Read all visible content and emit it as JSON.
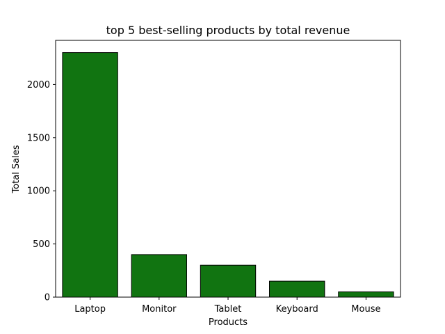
{
  "chart_data": {
    "type": "bar",
    "title": "top 5 best-selling products by total revenue",
    "xlabel": "Products",
    "ylabel": "Total Sales",
    "categories": [
      "Laptop",
      "Monitor",
      "Tablet",
      "Keyboard",
      "Mouse"
    ],
    "values": [
      2300,
      400,
      300,
      150,
      50
    ],
    "ylim": [
      0,
      2415
    ],
    "yticks": [
      0,
      500,
      1000,
      1500,
      2000
    ],
    "grid": false,
    "colors": {
      "bar_fill": "#117411",
      "bar_edge": "#000000",
      "axes": "#000000"
    }
  }
}
